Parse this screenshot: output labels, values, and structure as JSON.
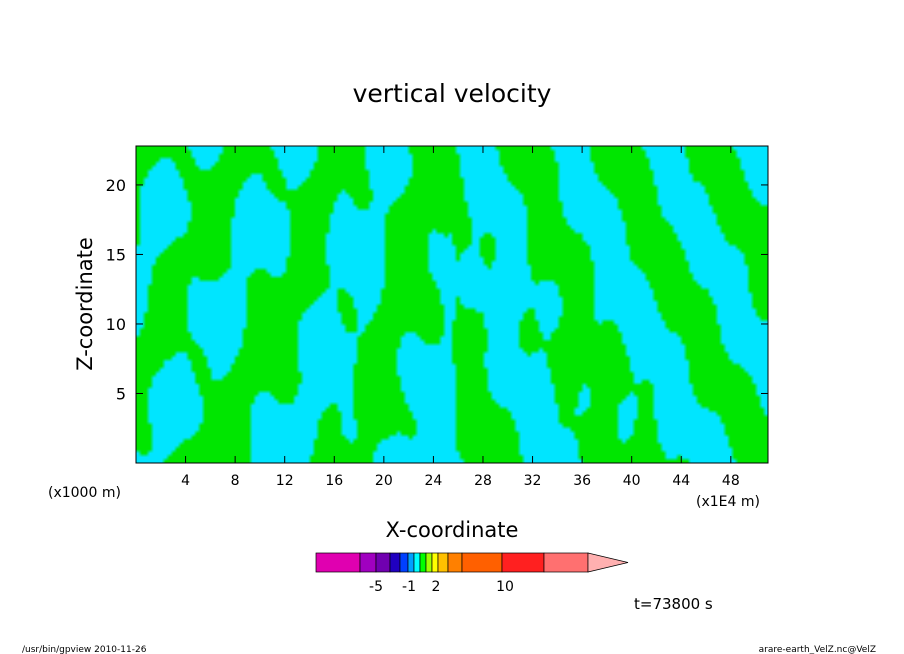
{
  "chart_data": {
    "type": "heatmap",
    "title": "vertical velocity",
    "xlabel": "X-coordinate",
    "ylabel": "Z-coordinate",
    "x_unit_left": "(x1000 m)",
    "x_unit_right": "(x1E4 m)",
    "xlim": [
      0,
      51
    ],
    "ylim": [
      0,
      22.8
    ],
    "x_ticks": [
      "4",
      "8",
      "12",
      "16",
      "20",
      "24",
      "28",
      "32",
      "36",
      "40",
      "44",
      "48"
    ],
    "y_ticks": [
      "5",
      "10",
      "15",
      "20"
    ],
    "time_label": "t=73800 s",
    "colorbar": {
      "colors": [
        "#e000b0",
        "#a000c0",
        "#7000b0",
        "#2000c0",
        "#0040ff",
        "#00a0ff",
        "#00ffff",
        "#00ff00",
        "#a0ff00",
        "#ffff00",
        "#ffc000",
        "#ff8000",
        "#ff6000",
        "#ff2020",
        "#ff7070",
        "#ffb0b0"
      ],
      "tick_labels": [
        "-5",
        "-1",
        "2",
        "10"
      ]
    },
    "fill_colors": {
      "negative": "#00e5ff",
      "positive": "#00e600"
    }
  },
  "footer": {
    "left": "/usr/bin/gpview   2010-11-26",
    "right": "arare-earth_VelZ.nc@VelZ"
  }
}
